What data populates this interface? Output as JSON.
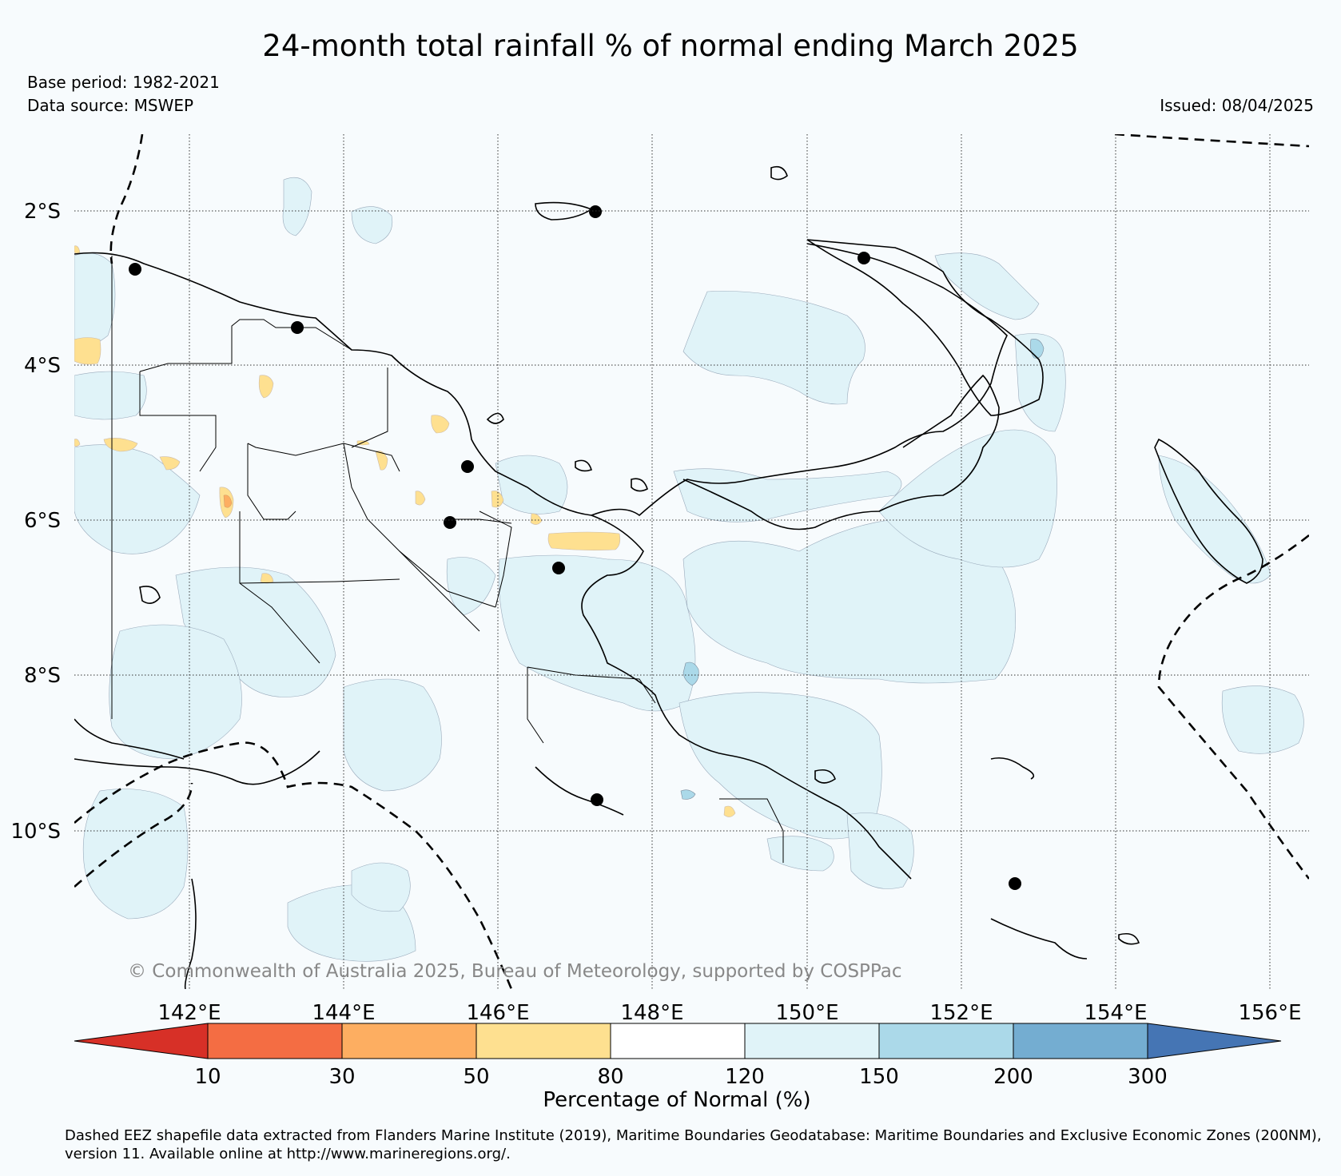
{
  "title": "24-month total rainfall % of normal ending March 2025",
  "base_period": "Base period: 1982-2021",
  "data_source": "Data source: MSWEP",
  "issued": "Issued: 08/04/2025",
  "copyright": "© Commonwealth of Australia 2025, Bureau of Meteorology, supported by COSPPac",
  "footnote": "Dashed EEZ shapefile data extracted from Flanders Marine Institute (2019), Maritime Boundaries Geodatabase: Maritime Boundaries and Exclusive Economic Zones (200NM), version 11. Available online at http://www.marineregions.org/.",
  "latitude_labels": [
    "2°S",
    "4°S",
    "6°S",
    "8°S",
    "10°S"
  ],
  "longitude_labels": [
    "142°E",
    "144°E",
    "146°E",
    "148°E",
    "150°E",
    "152°E",
    "154°E",
    "156°E"
  ],
  "colorbar": {
    "label": "Percentage of Normal (%)",
    "tick_labels": [
      "10",
      "30",
      "50",
      "80",
      "120",
      "150",
      "200",
      "300"
    ],
    "colors": [
      "#d73027",
      "#f46d43",
      "#fdae61",
      "#fee090",
      "#ffffff",
      "#e0f3f8",
      "#abd9e9",
      "#74add1",
      "#4575b4"
    ]
  },
  "colors": {
    "background": "#f7fbfd",
    "above_normal_120_150": "#e0f3f8",
    "above_normal_150_200": "#abd9e9",
    "below_normal_50_80": "#fee090",
    "below_normal_30_50": "#fdae61",
    "stations": "#000000"
  }
}
